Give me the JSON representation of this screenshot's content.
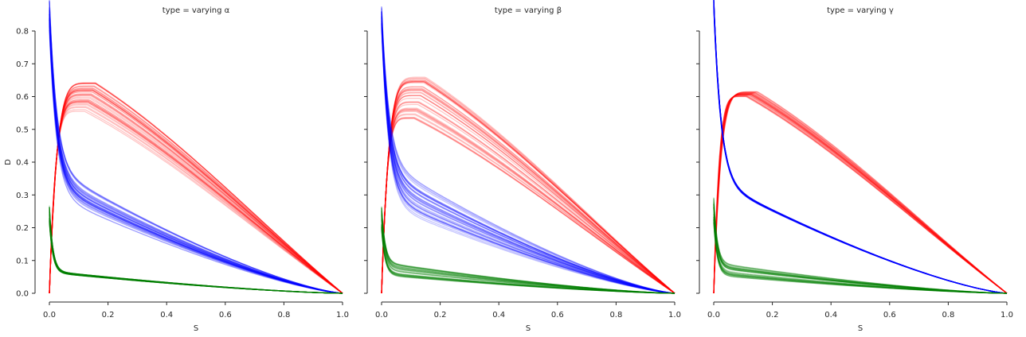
{
  "chart_data": [
    {
      "type": "line",
      "title": "type = varying α",
      "xlabel": "S",
      "ylabel": "D",
      "xlim": [
        0.0,
        1.0
      ],
      "ylim": [
        0.0,
        0.8
      ],
      "xticks": [
        "0.0",
        "0.2",
        "0.4",
        "0.6",
        "0.8",
        "1.0"
      ],
      "yticks": [
        "0.0",
        "0.1",
        "0.2",
        "0.3",
        "0.4",
        "0.5",
        "0.6",
        "0.7",
        "0.8"
      ],
      "grid": false,
      "series": [
        {
          "color": "#ff0000",
          "peak_range": [
            0.555,
            0.648
          ],
          "peak_x": 0.14,
          "start_y": 0.0,
          "end_x": 1.0,
          "end_y": 0.0
        },
        {
          "color": "#0000ff",
          "start_y_range": [
            0.72,
            0.8
          ],
          "mid_y_at_0.2_range": [
            0.22,
            0.29
          ],
          "end_x": 1.0,
          "end_y": 0.0
        },
        {
          "color": "#008000",
          "start_y_range": [
            0.2,
            0.25
          ],
          "mid_y_at_0.2_range": [
            0.046,
            0.05
          ],
          "end_x": 1.0,
          "end_y": 0.0
        }
      ]
    },
    {
      "type": "line",
      "title": "type = varying β",
      "xlabel": "S",
      "ylabel": "",
      "xlim": [
        0.0,
        1.0
      ],
      "ylim": [
        0.0,
        0.8
      ],
      "xticks": [
        "0.0",
        "0.2",
        "0.4",
        "0.6",
        "0.8",
        "1.0"
      ],
      "yticks": [],
      "grid": false,
      "series": [
        {
          "color": "#ff0000",
          "peak_range": [
            0.53,
            0.66
          ],
          "peak_x": 0.13,
          "start_y": 0.0,
          "end_x": 1.0,
          "end_y": 0.0
        },
        {
          "color": "#0000ff",
          "start_y_range": [
            0.74,
            0.77
          ],
          "mid_y_at_0.2_range": [
            0.2,
            0.3
          ],
          "end_x": 1.0,
          "end_y": 0.0
        },
        {
          "color": "#008000",
          "start_y_range": [
            0.18,
            0.24
          ],
          "mid_y_at_0.2_range": [
            0.04,
            0.07
          ],
          "end_x": 1.0,
          "end_y": 0.0
        }
      ]
    },
    {
      "type": "line",
      "title": "type = varying γ",
      "xlabel": "S",
      "ylabel": "",
      "xlim": [
        0.0,
        1.0
      ],
      "ylim": [
        0.0,
        0.8
      ],
      "xticks": [
        "0.0",
        "0.2",
        "0.4",
        "0.6",
        "0.8",
        "1.0"
      ],
      "yticks": [],
      "grid": false,
      "series": [
        {
          "color": "#ff0000",
          "peak_range": [
            0.6,
            0.615
          ],
          "peak_x": 0.13,
          "start_y": 0.0,
          "end_x": 1.0,
          "end_y": 0.0
        },
        {
          "color": "#0000ff",
          "start_y_range": [
            0.78,
            0.81
          ],
          "mid_y_at_0.2_range": [
            0.25,
            0.255
          ],
          "end_x": 1.0,
          "end_y": 0.0
        },
        {
          "color": "#008000",
          "start_y_range": [
            0.2,
            0.27
          ],
          "mid_y_at_0.2_range": [
            0.04,
            0.07
          ],
          "end_x": 1.0,
          "end_y": 0.0
        }
      ]
    }
  ]
}
